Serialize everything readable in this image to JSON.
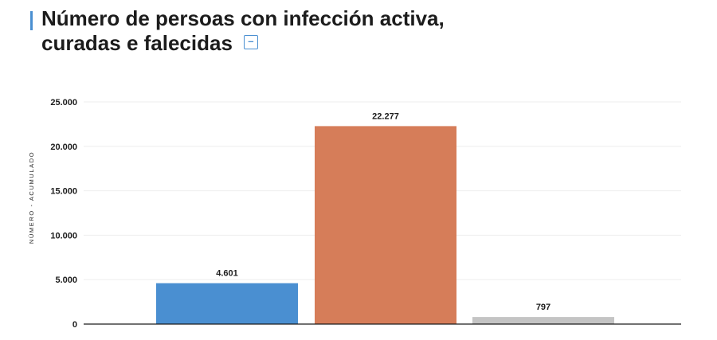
{
  "header": {
    "title_line1": "Número de persoas con infección activa,",
    "title_line2": "curadas e falecidas",
    "collapse_symbol": "–"
  },
  "colors": {
    "accent": "#4a8fd1",
    "bar_active": "#4a8fd1",
    "bar_recovered": "#d67d59",
    "bar_deceased": "#c4c4c4",
    "grid": "#eeeeee",
    "axis": "#1c1c1c"
  },
  "chart_data": {
    "type": "bar",
    "categories": [
      "",
      "",
      ""
    ],
    "values": [
      4601,
      22277,
      797
    ],
    "value_labels": [
      "4.601",
      "22.277",
      "797"
    ],
    "bar_colors": [
      "#4a8fd1",
      "#d67d59",
      "#c4c4c4"
    ],
    "ylabel": "NÚMERO - ACUMULADO",
    "ylim": [
      0,
      25000
    ],
    "yticks": [
      0,
      5000,
      10000,
      15000,
      20000,
      25000
    ],
    "ytick_labels": [
      "0",
      "5.000",
      "10.000",
      "15.000",
      "20.000",
      "25.000"
    ],
    "grid": true,
    "legend": "none"
  }
}
